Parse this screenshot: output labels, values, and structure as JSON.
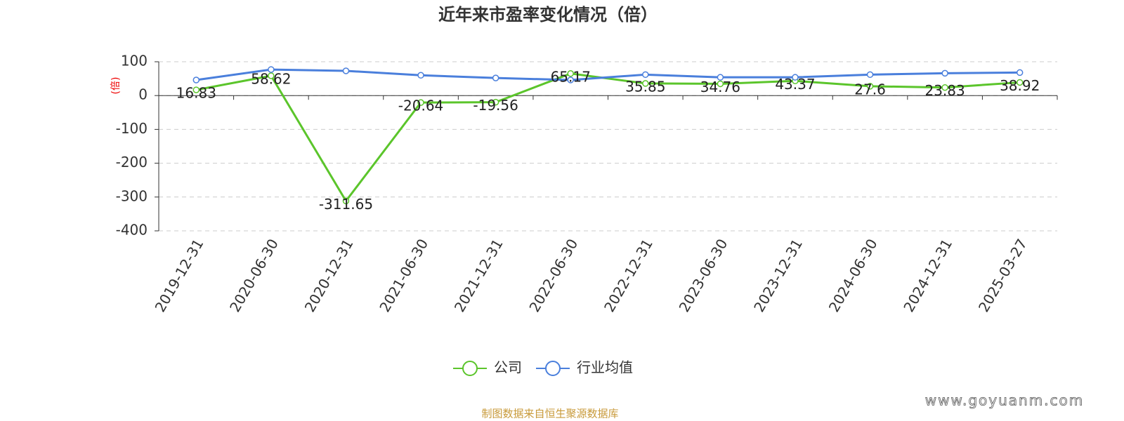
{
  "chart_data": {
    "type": "line",
    "title": "近年来市盈率变化情况（倍）",
    "y_label": "(倍)",
    "categories": [
      "2019-12-31",
      "2020-06-30",
      "2020-12-31",
      "2021-06-30",
      "2021-12-31",
      "2022-06-30",
      "2022-12-31",
      "2023-06-30",
      "2023-12-31",
      "2024-06-30",
      "2024-12-31",
      "2025-03-27"
    ],
    "series": [
      {
        "name": "公司",
        "color": "#5bc52b",
        "values": [
          16.83,
          58.62,
          -311.65,
          -20.64,
          -19.56,
          65.17,
          35.85,
          34.76,
          43.37,
          27.6,
          23.83,
          38.92
        ],
        "show_labels": true
      },
      {
        "name": "行业均值",
        "color": "#4a7fdc",
        "values": [
          46,
          77,
          73,
          60,
          52,
          46,
          62,
          54,
          54,
          62,
          66,
          68
        ],
        "show_labels": false
      }
    ],
    "ylim": [
      -400,
      100
    ],
    "yticks": [
      -400,
      -300,
      -200,
      -100,
      0,
      100
    ],
    "grid": true,
    "source": "制图数据来自恒生聚源数据库",
    "watermark": "www.goyuanm.com"
  }
}
